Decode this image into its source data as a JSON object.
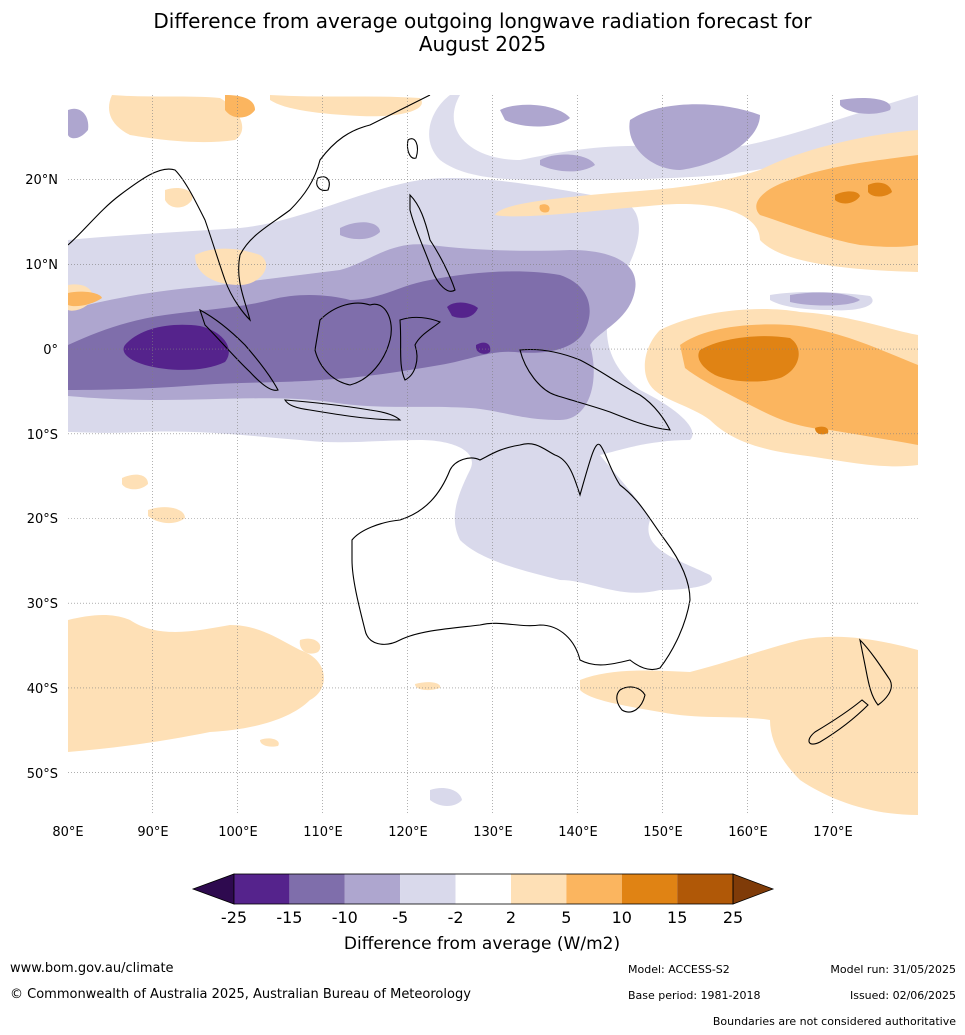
{
  "title_line1": "Difference from average outgoing longwave radiation forecast for",
  "title_line2": "August 2025",
  "map": {
    "lon_ticks": [
      "80°E",
      "90°E",
      "100°E",
      "110°E",
      "120°E",
      "130°E",
      "140°E",
      "150°E",
      "160°E",
      "170°E"
    ],
    "lat_ticks": [
      "20°N",
      "10°N",
      "0°",
      "10°S",
      "20°S",
      "30°S",
      "40°S",
      "50°S"
    ],
    "lon_range": [
      80,
      180
    ],
    "lat_range": [
      -55,
      30
    ]
  },
  "colorbar": {
    "labels": [
      "-25",
      "-15",
      "-10",
      "-5",
      "-2",
      "2",
      "5",
      "10",
      "15",
      "25"
    ],
    "colors": [
      "#55238c",
      "#7f6eab",
      "#aea6cf",
      "#d9d9eb",
      "#ffffff",
      "#fee0b6",
      "#fbb55f",
      "#e08314",
      "#b05807"
    ],
    "under_color": "#2e0a4f",
    "over_color": "#7f3b08",
    "units": "Difference from average (W/m2)"
  },
  "footer": {
    "website": "www.bom.gov.au/climate",
    "copyright": "© Commonwealth of Australia 2025, Australian Bureau of Meteorology",
    "model": "Model: ACCESS-S2",
    "base_period": "Base period: 1981-2018",
    "model_run": "Model run: 31/05/2025",
    "issued": "Issued: 02/06/2025",
    "disclaimer": "Boundaries are not considered authoritative"
  }
}
